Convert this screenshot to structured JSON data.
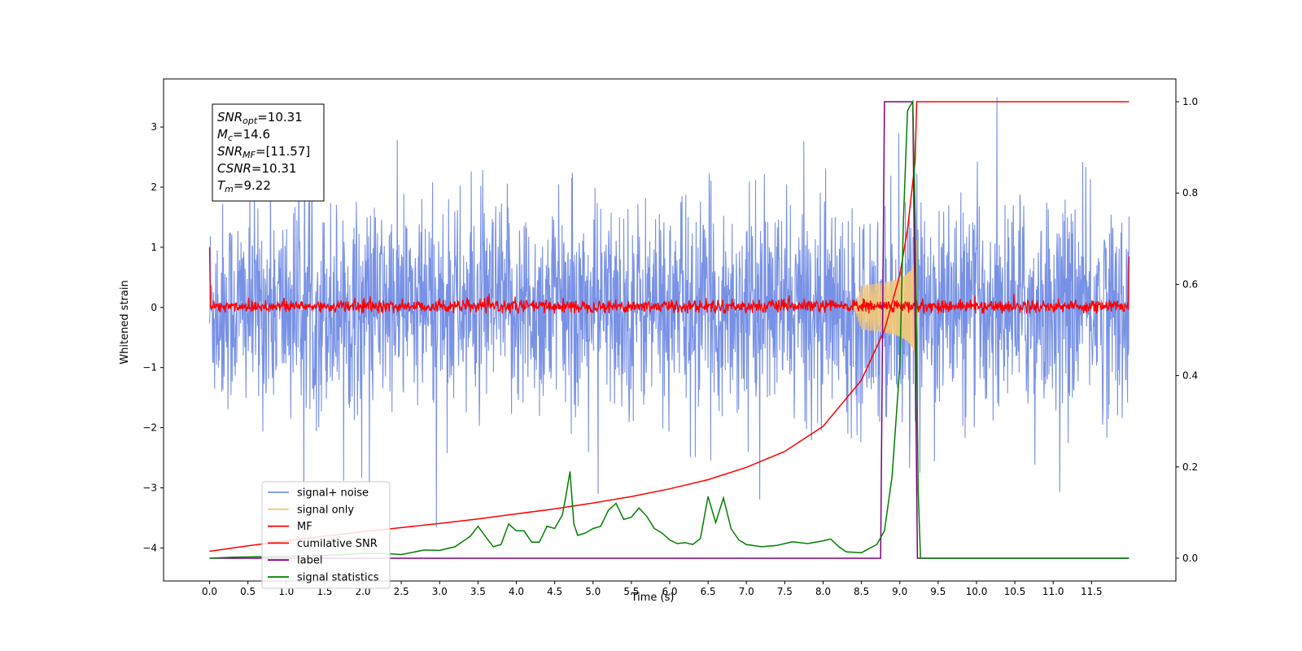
{
  "chart_data": {
    "type": "line",
    "xlabel": "Time (s)",
    "ylabel": "Whitened strain",
    "x_ticks": [
      0.0,
      0.5,
      1.0,
      1.5,
      2.0,
      2.5,
      3.0,
      3.5,
      4.0,
      4.5,
      5.0,
      5.5,
      6.0,
      6.5,
      7.0,
      7.5,
      8.0,
      8.5,
      9.0,
      9.5,
      10.0,
      10.5,
      11.0,
      11.5
    ],
    "x_tick_labels": [
      "0.0",
      "0.5",
      "1.0",
      "1.5",
      "2.0",
      "2.5",
      "3.0",
      "3.5",
      "4.0",
      "4.5",
      "5.0",
      "5.5",
      "6.0",
      "6.5",
      "7.0",
      "7.5",
      "8.0",
      "8.5",
      "9.0",
      "9.5",
      "10.0",
      "10.5",
      "11.0",
      "11.5"
    ],
    "xlim": [
      -0.6,
      12.6
    ],
    "ylim_left": [
      -4.55,
      3.8
    ],
    "y_left_ticks": [
      3,
      2,
      1,
      0,
      -1,
      -2,
      -3,
      -4
    ],
    "y_left_tick_labels": [
      "3",
      "2",
      "1",
      "0",
      "−1",
      "−2",
      "−3",
      "−4"
    ],
    "ylim_right": [
      -0.05,
      1.05
    ],
    "y_right_ticks": [
      1.0,
      0.8,
      0.6,
      0.4,
      0.2,
      0.0
    ],
    "y_right_tick_labels": [
      "1.0",
      "0.8",
      "0.6",
      "0.4",
      "0.2",
      "0.0"
    ],
    "annotation": [
      {
        "main": "SNR",
        "sub": "opt",
        "value": "=10.31"
      },
      {
        "main": "M",
        "sub": "c",
        "value": "=14.6"
      },
      {
        "main": "SNR",
        "sub": "MF",
        "value": "=[11.57]"
      },
      {
        "main": "CSNR",
        "sub": "",
        "value": "=10.31"
      },
      {
        "main": "T",
        "sub": "m",
        "value": "=9.22"
      }
    ],
    "legend_position": "lower-left",
    "series": [
      {
        "name": "signal+ noise",
        "color": "#7891e6",
        "axis": "left",
        "kind": "noise band",
        "approx_range": [
          -2.0,
          2.0
        ],
        "peak_range": [
          -4.1,
          3.5
        ]
      },
      {
        "name": "signal only",
        "color": "#f5c977",
        "axis": "left",
        "kind": "chirp",
        "start_x": 8.4,
        "merger_x": 9.22,
        "peak_amplitude": 0.9
      },
      {
        "name": "MF",
        "color": "#ff0000",
        "axis": "left",
        "kind": "noise band",
        "approx_range": [
          -0.1,
          0.15
        ],
        "edge_values": [
          1.0,
          0.85
        ]
      },
      {
        "name": "cumilative SNR",
        "color": "#ff0000",
        "axis": "right",
        "x": [
          0.0,
          0.5,
          1.0,
          1.5,
          2.0,
          2.5,
          3.0,
          3.5,
          4.0,
          4.5,
          5.0,
          5.5,
          6.0,
          6.5,
          7.0,
          7.5,
          8.0,
          8.5,
          8.8,
          9.0,
          9.1,
          9.2,
          9.22,
          9.3,
          10.0,
          11.0,
          11.99
        ],
        "y": [
          0.015,
          0.027,
          0.038,
          0.048,
          0.058,
          0.067,
          0.076,
          0.086,
          0.097,
          0.108,
          0.121,
          0.135,
          0.152,
          0.172,
          0.199,
          0.234,
          0.289,
          0.39,
          0.5,
          0.62,
          0.72,
          0.87,
          1.0,
          1.0,
          1.0,
          1.0,
          1.0
        ]
      },
      {
        "name": "label",
        "color": "#800080",
        "axis": "right",
        "x": [
          0.0,
          8.75,
          8.8,
          9.17,
          9.23,
          11.99
        ],
        "y": [
          0.0,
          0.0,
          1.0,
          1.0,
          0.0,
          0.0
        ]
      },
      {
        "name": "signal statistics",
        "color": "#008000",
        "axis": "right",
        "x": [
          0.0,
          0.3,
          0.6,
          1.0,
          1.5,
          2.0,
          2.3,
          2.5,
          2.8,
          3.0,
          3.2,
          3.4,
          3.5,
          3.6,
          3.7,
          3.8,
          3.9,
          4.0,
          4.1,
          4.2,
          4.3,
          4.4,
          4.5,
          4.6,
          4.65,
          4.7,
          4.75,
          4.8,
          4.9,
          5.0,
          5.1,
          5.2,
          5.3,
          5.4,
          5.5,
          5.6,
          5.7,
          5.8,
          5.9,
          6.0,
          6.1,
          6.2,
          6.3,
          6.4,
          6.5,
          6.6,
          6.7,
          6.8,
          6.9,
          7.0,
          7.2,
          7.4,
          7.6,
          7.8,
          8.0,
          8.1,
          8.2,
          8.3,
          8.5,
          8.7,
          8.8,
          8.9,
          9.0,
          9.05,
          9.1,
          9.13,
          9.17,
          9.2,
          9.24,
          9.27,
          9.3,
          10.0,
          11.0,
          11.99
        ],
        "y": [
          0.0,
          0.002,
          0.003,
          0.004,
          0.006,
          0.01,
          0.01,
          0.008,
          0.018,
          0.017,
          0.025,
          0.048,
          0.07,
          0.047,
          0.025,
          0.03,
          0.075,
          0.06,
          0.06,
          0.035,
          0.035,
          0.07,
          0.065,
          0.095,
          0.14,
          0.19,
          0.075,
          0.05,
          0.055,
          0.065,
          0.07,
          0.105,
          0.12,
          0.085,
          0.09,
          0.11,
          0.092,
          0.065,
          0.055,
          0.04,
          0.032,
          0.034,
          0.03,
          0.043,
          0.135,
          0.078,
          0.132,
          0.065,
          0.04,
          0.03,
          0.025,
          0.028,
          0.036,
          0.032,
          0.038,
          0.042,
          0.026,
          0.014,
          0.012,
          0.03,
          0.06,
          0.18,
          0.42,
          0.75,
          0.98,
          0.99,
          1.0,
          0.75,
          0.15,
          0.0,
          0.0,
          0.0,
          0.0,
          0.0
        ]
      }
    ]
  }
}
